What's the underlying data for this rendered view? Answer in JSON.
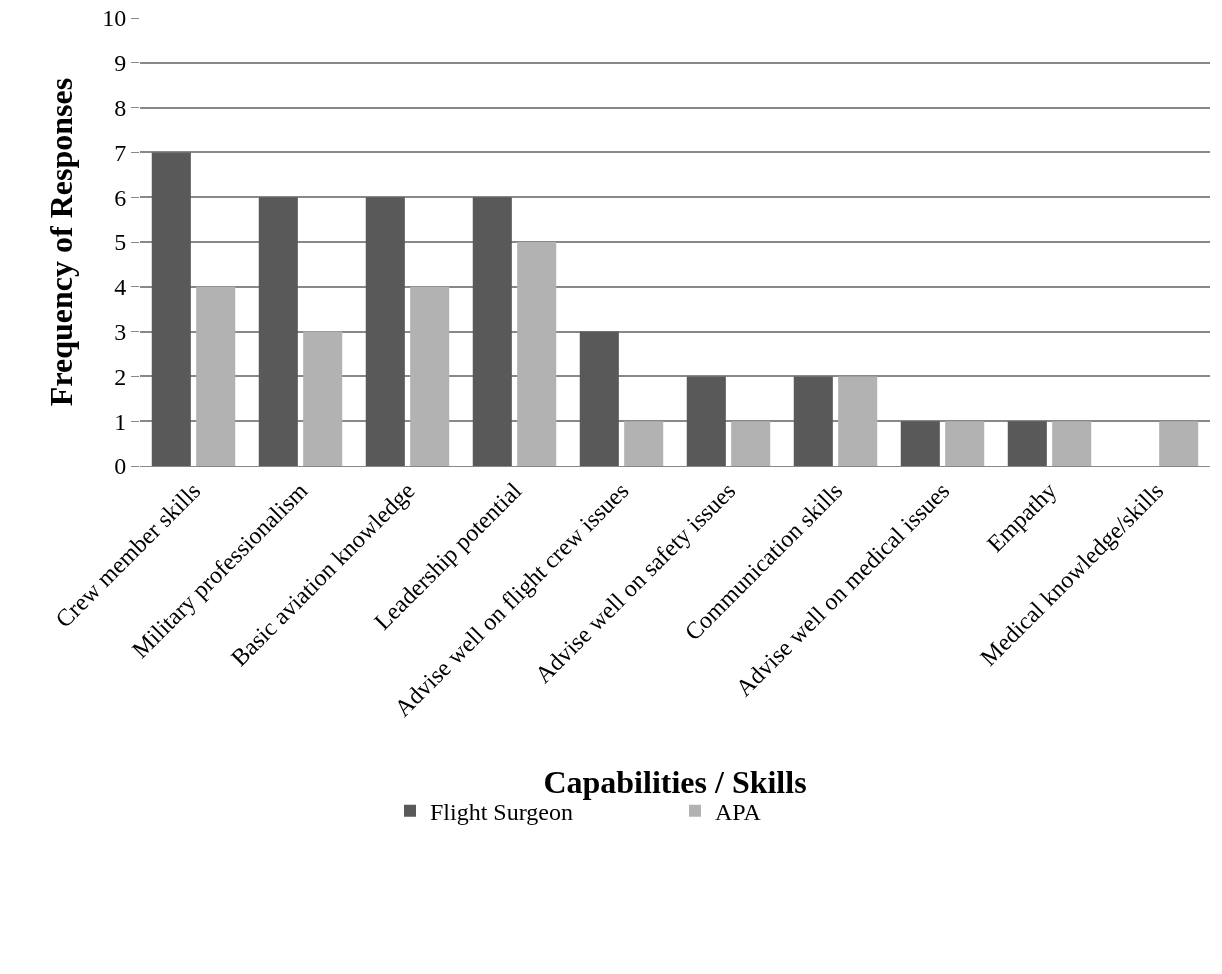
{
  "chart_data": {
    "type": "bar",
    "xlabel": "Capabilities / Skills",
    "ylabel": "Frequency of Responses",
    "categories": [
      "Crew member skills",
      "Military professionalism",
      "Basic aviation knowledge",
      "Leadership potential",
      "Advise well on flight crew issues",
      "Advise well on safety issues",
      "Communication skills",
      "Advise well on medical issues",
      "Empathy",
      "Medical knowledge/skills"
    ],
    "series": [
      {
        "name": "Flight Surgeon",
        "color": "#595959",
        "values": [
          7,
          6,
          6,
          6,
          3,
          2,
          2,
          1,
          1,
          0
        ]
      },
      {
        "name": "APA",
        "color": "#b2b2b2",
        "values": [
          4,
          3,
          4,
          5,
          1,
          1,
          2,
          1,
          1,
          1
        ]
      }
    ],
    "ylim": [
      0,
      10
    ],
    "yticks": [
      0,
      1,
      2,
      3,
      4,
      5,
      6,
      7,
      8,
      9,
      10
    ],
    "grid": "y",
    "legend": "bottom"
  }
}
